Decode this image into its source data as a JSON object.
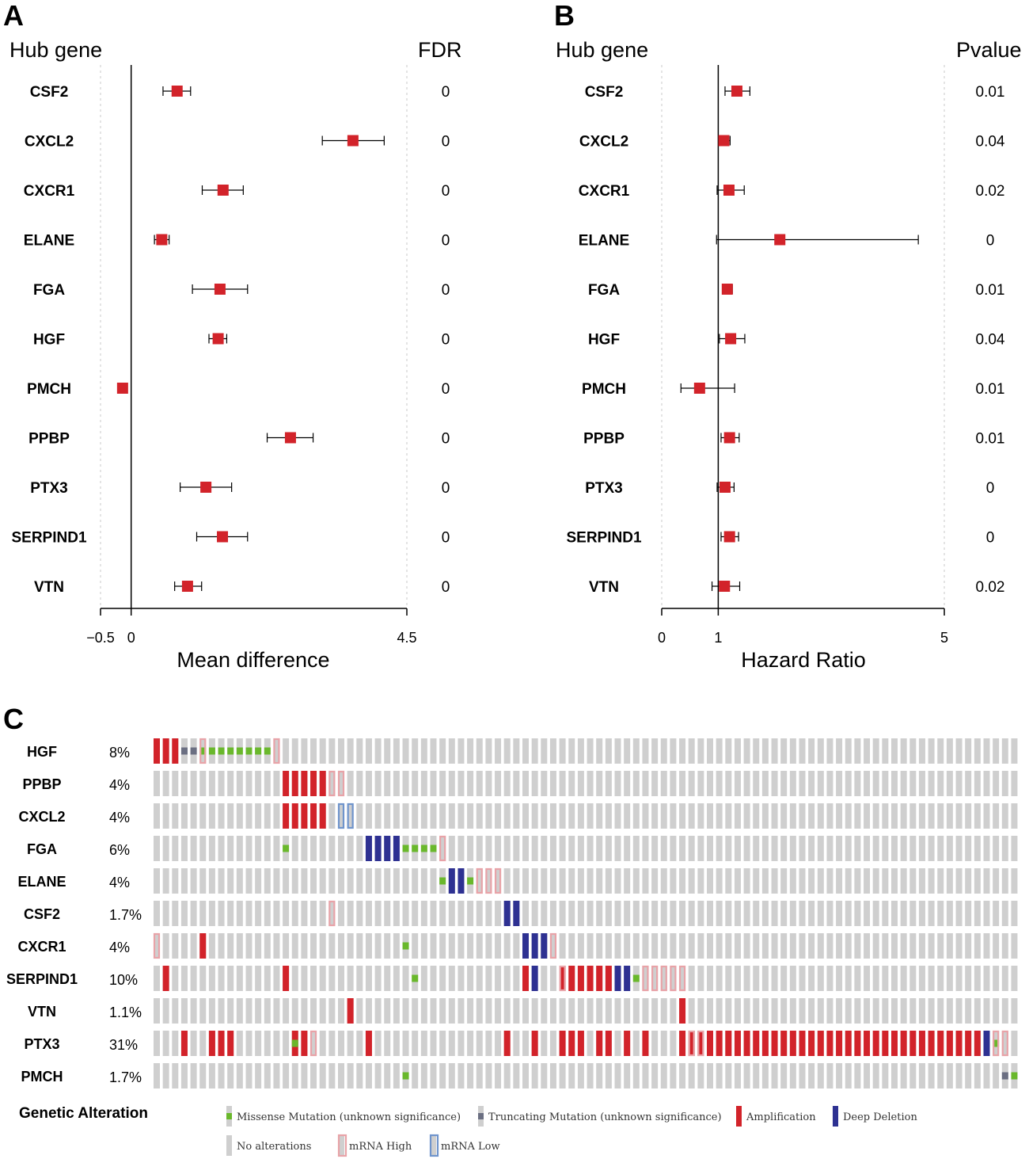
{
  "chart_data": [
    {
      "type": "forest",
      "panel": "A",
      "header_left": "Hub gene",
      "header_right": "FDR",
      "xlabel": "Mean difference",
      "xlim": [
        -0.5,
        4.5
      ],
      "xticks": [
        -0.5,
        0,
        4.5
      ],
      "xtick_labels": [
        "−0.5",
        "0",
        "4.5"
      ],
      "reference_line": 0,
      "rows": [
        {
          "gene": "CSF2",
          "est": 0.75,
          "lo": 0.52,
          "hi": 0.97,
          "stat": "0"
        },
        {
          "gene": "CXCL2",
          "est": 3.62,
          "lo": 3.12,
          "hi": 4.13,
          "stat": "0"
        },
        {
          "gene": "CXCR1",
          "est": 1.5,
          "lo": 1.16,
          "hi": 1.83,
          "stat": "0"
        },
        {
          "gene": "ELANE",
          "est": 0.5,
          "lo": 0.38,
          "hi": 0.62,
          "stat": "0"
        },
        {
          "gene": "FGA",
          "est": 1.45,
          "lo": 1.0,
          "hi": 1.9,
          "stat": "0"
        },
        {
          "gene": "HGF",
          "est": 1.42,
          "lo": 1.27,
          "hi": 1.56,
          "stat": "0"
        },
        {
          "gene": "PMCH",
          "est": -0.14,
          "lo": -0.14,
          "hi": -0.14,
          "stat": "0"
        },
        {
          "gene": "PPBP",
          "est": 2.6,
          "lo": 2.22,
          "hi": 2.97,
          "stat": "0"
        },
        {
          "gene": "PTX3",
          "est": 1.22,
          "lo": 0.8,
          "hi": 1.64,
          "stat": "0"
        },
        {
          "gene": "SERPIND1",
          "est": 1.49,
          "lo": 1.07,
          "hi": 1.9,
          "stat": "0"
        },
        {
          "gene": "VTN",
          "est": 0.92,
          "lo": 0.71,
          "hi": 1.15,
          "stat": "0"
        }
      ]
    },
    {
      "type": "forest",
      "panel": "B",
      "header_left": "Hub gene",
      "header_right": "Pvalue",
      "xlabel": "Hazard Ratio",
      "xlim": [
        0,
        5
      ],
      "xticks": [
        0,
        1,
        5
      ],
      "xtick_labels": [
        "0",
        "1",
        "5"
      ],
      "reference_line": 1,
      "rows": [
        {
          "gene": "CSF2",
          "est": 1.33,
          "lo": 1.12,
          "hi": 1.56,
          "stat": "0.01"
        },
        {
          "gene": "CXCL2",
          "est": 1.1,
          "lo": 1.02,
          "hi": 1.21,
          "stat": "0.04"
        },
        {
          "gene": "CXCR1",
          "est": 1.19,
          "lo": 0.98,
          "hi": 1.46,
          "stat": "0.02"
        },
        {
          "gene": "ELANE",
          "est": 2.09,
          "lo": 0.97,
          "hi": 4.54,
          "stat": "0"
        },
        {
          "gene": "FGA",
          "est": 1.16,
          "lo": 1.08,
          "hi": 1.25,
          "stat": "0.01"
        },
        {
          "gene": "HGF",
          "est": 1.22,
          "lo": 1.02,
          "hi": 1.47,
          "stat": "0.04"
        },
        {
          "gene": "PMCH",
          "est": 0.67,
          "lo": 0.34,
          "hi": 1.29,
          "stat": "0.01"
        },
        {
          "gene": "PPBP",
          "est": 1.2,
          "lo": 1.05,
          "hi": 1.37,
          "stat": "0.01"
        },
        {
          "gene": "PTX3",
          "est": 1.12,
          "lo": 0.98,
          "hi": 1.28,
          "stat": "0"
        },
        {
          "gene": "SERPIND1",
          "est": 1.2,
          "lo": 1.05,
          "hi": 1.36,
          "stat": "0"
        },
        {
          "gene": "VTN",
          "est": 1.11,
          "lo": 0.89,
          "hi": 1.38,
          "stat": "0.02"
        }
      ]
    },
    {
      "type": "oncoprint",
      "panel": "C",
      "n_samples": 94,
      "legend_title": "Genetic Alteration",
      "legend": [
        {
          "code": "M",
          "label": "Missense Mutation (unknown significance)"
        },
        {
          "code": "T",
          "label": "Truncating Mutation (unknown significance)"
        },
        {
          "code": "A",
          "label": "Amplification"
        },
        {
          "code": "D",
          "label": "Deep Deletion"
        },
        {
          "code": "N",
          "label": "No alterations"
        },
        {
          "code": "H",
          "label": "mRNA High"
        },
        {
          "code": "L",
          "label": "mRNA Low"
        }
      ],
      "colors": {
        "none": "#cfcfcf",
        "amp": "#d2232a",
        "del": "#2e3192",
        "missense": "#6ab82c",
        "trunc": "#6b6f82",
        "mrna_high": "#e8a3a8",
        "mrna_low": "#6f94cc"
      },
      "rows": [
        {
          "gene": "HGF",
          "pct": "8%",
          "alts": {
            "0": "A",
            "1": "A",
            "2": "A",
            "3": "T",
            "4": "T",
            "5": "MH",
            "6": "M",
            "7": "M",
            "8": "M",
            "9": "M",
            "10": "M",
            "11": "M",
            "12": "M",
            "13": "H"
          }
        },
        {
          "gene": "PPBP",
          "pct": "4%",
          "alts": {
            "14": "A",
            "15": "A",
            "16": "A",
            "17": "A",
            "18": "A",
            "19": "H",
            "20": "H"
          }
        },
        {
          "gene": "CXCL2",
          "pct": "4%",
          "alts": {
            "14": "A",
            "15": "A",
            "16": "A",
            "17": "A",
            "18": "A",
            "20": "L",
            "21": "L"
          }
        },
        {
          "gene": "FGA",
          "pct": "6%",
          "alts": {
            "14": "M",
            "23": "D",
            "24": "D",
            "25": "D",
            "26": "D",
            "27": "M",
            "28": "M",
            "29": "M",
            "30": "M",
            "31": "H"
          }
        },
        {
          "gene": "ELANE",
          "pct": "4%",
          "alts": {
            "31": "M",
            "32": "D",
            "33": "D",
            "34": "M",
            "35": "H",
            "36": "H",
            "37": "H"
          }
        },
        {
          "gene": "CSF2",
          "pct": "1.7%",
          "alts": {
            "19": "H",
            "38": "D",
            "39": "D"
          }
        },
        {
          "gene": "CXCR1",
          "pct": "4%",
          "alts": {
            "0": "H",
            "5": "A",
            "27": "M",
            "40": "D",
            "41": "D",
            "42": "D",
            "43": "H"
          }
        },
        {
          "gene": "SERPIND1",
          "pct": "10%",
          "alts": {
            "1": "A",
            "14": "A",
            "28": "M",
            "40": "A",
            "41": "D",
            "44": "AH",
            "45": "A",
            "46": "A",
            "47": "A",
            "48": "A",
            "49": "A",
            "50": "D",
            "51": "D",
            "52": "M",
            "53": "H",
            "54": "H",
            "55": "H",
            "56": "H",
            "57": "H"
          }
        },
        {
          "gene": "VTN",
          "pct": "1.1%",
          "alts": {
            "21": "A",
            "57": "A"
          }
        },
        {
          "gene": "PTX3",
          "pct": "31%",
          "alts": {
            "3": "A",
            "6": "A",
            "7": "A",
            "8": "A",
            "15": "AM",
            "16": "A",
            "17": "H",
            "23": "A",
            "38": "A",
            "41": "A",
            "44": "A",
            "45": "A",
            "46": "A",
            "48": "A",
            "49": "A",
            "51": "A",
            "53": "A",
            "57": "A",
            "58": "AH",
            "59": "AH",
            "60": "A",
            "61": "A",
            "62": "A",
            "63": "A",
            "64": "A",
            "65": "A",
            "66": "A",
            "67": "A",
            "68": "A",
            "69": "A",
            "70": "A",
            "71": "A",
            "72": "A",
            "73": "A",
            "74": "A",
            "75": "A",
            "76": "A",
            "77": "A",
            "78": "A",
            "79": "A",
            "80": "A",
            "81": "A",
            "82": "A",
            "83": "A",
            "84": "A",
            "85": "A",
            "86": "A",
            "87": "A",
            "88": "A",
            "89": "A",
            "90": "D",
            "91": "MH",
            "92": "H"
          }
        },
        {
          "gene": "PMCH",
          "pct": "1.7%",
          "alts": {
            "27": "M",
            "92": "T",
            "93": "M"
          }
        }
      ]
    }
  ]
}
